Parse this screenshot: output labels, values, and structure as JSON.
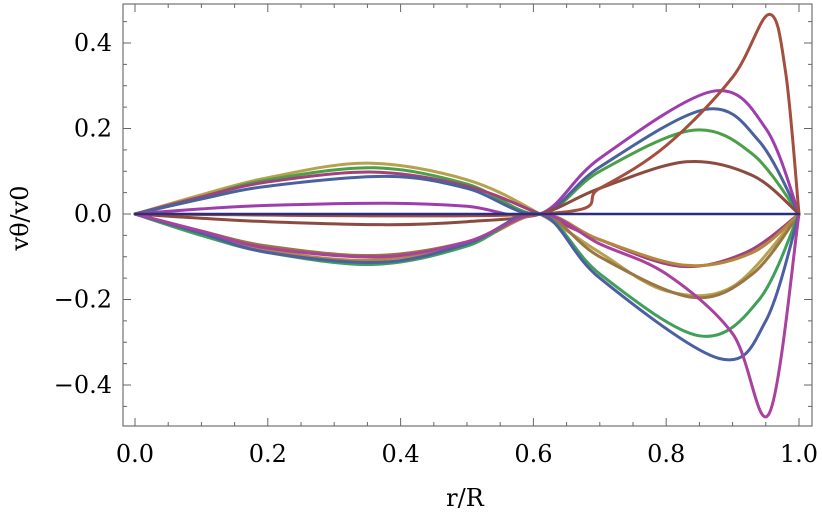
{
  "chart_data": {
    "type": "line",
    "title": "",
    "xlabel": "r/R",
    "ylabel": "vθ/v0",
    "xlim": [
      -0.02,
      1.02
    ],
    "ylim": [
      -0.5,
      0.5
    ],
    "x_ticks": [
      {
        "value": 0.0,
        "label": "0.0"
      },
      {
        "value": 0.2,
        "label": "0.2"
      },
      {
        "value": 0.4,
        "label": "0.4"
      },
      {
        "value": 0.6,
        "label": "0.6"
      },
      {
        "value": 0.8,
        "label": "0.8"
      },
      {
        "value": 1.0,
        "label": "1.0"
      }
    ],
    "y_ticks": [
      {
        "value": 0.4,
        "label": "0.4"
      },
      {
        "value": 0.2,
        "label": "0.2"
      },
      {
        "value": 0.0,
        "label": "0.0"
      },
      {
        "value": -0.2,
        "label": "−0.2"
      },
      {
        "value": -0.4,
        "label": "−0.4"
      }
    ],
    "grid": false,
    "legend": "none",
    "series": [
      {
        "color": "#B5A24E",
        "x": [
          0,
          0.1,
          0.2,
          0.35,
          0.5,
          0.61,
          0.7,
          0.8,
          0.9,
          1.0
        ],
        "y": [
          0,
          0.045,
          0.085,
          0.119,
          0.08,
          0,
          -0.09,
          -0.18,
          -0.17,
          0
        ]
      },
      {
        "color": "#4C9E47",
        "x": [
          0,
          0.1,
          0.2,
          0.36,
          0.5,
          0.61,
          0.7,
          0.84,
          0.93,
          1.0
        ],
        "y": [
          0,
          0.04,
          0.08,
          0.108,
          0.07,
          0,
          0.1,
          0.196,
          0.14,
          0
        ]
      },
      {
        "color": "#A3407E",
        "x": [
          0,
          0.1,
          0.2,
          0.36,
          0.5,
          0.61,
          0.7,
          0.82,
          0.92,
          1.0
        ],
        "y": [
          0,
          0.04,
          0.075,
          0.098,
          0.065,
          0,
          -0.06,
          -0.122,
          -0.09,
          0
        ]
      },
      {
        "color": "#4A629C",
        "x": [
          0,
          0.1,
          0.2,
          0.38,
          0.5,
          0.61,
          0.7,
          0.86,
          0.94,
          1.0
        ],
        "y": [
          0,
          0.035,
          0.065,
          0.088,
          0.06,
          0,
          0.11,
          0.245,
          0.17,
          0
        ]
      },
      {
        "color": "#9E3EAE",
        "x": [
          0,
          0.1,
          0.2,
          0.38,
          0.5,
          0.61,
          0.7,
          0.87,
          0.95,
          1.0
        ],
        "y": [
          0,
          0.012,
          0.02,
          0.025,
          0.018,
          0,
          0.13,
          0.287,
          0.2,
          0
        ]
      },
      {
        "color": "#8B4B3F",
        "x": [
          0,
          0.1,
          0.2,
          0.38,
          0.5,
          0.61,
          0.7,
          0.83,
          0.93,
          1.0
        ],
        "y": [
          0,
          -0.01,
          -0.018,
          -0.025,
          -0.018,
          0,
          0.06,
          0.122,
          0.09,
          0
        ]
      },
      {
        "color": "#9A7645",
        "x": [
          0,
          0.1,
          0.2,
          0.36,
          0.5,
          0.61,
          0.7,
          0.84,
          0.93,
          1.0
        ],
        "y": [
          0,
          -0.04,
          -0.075,
          -0.097,
          -0.065,
          0,
          -0.1,
          -0.195,
          -0.14,
          0
        ]
      },
      {
        "color": "#B3883D",
        "x": [
          0,
          0.1,
          0.2,
          0.35,
          0.5,
          0.61,
          0.7,
          0.83,
          0.93,
          1.0
        ],
        "y": [
          0,
          -0.045,
          -0.085,
          -0.108,
          -0.07,
          0,
          -0.06,
          -0.12,
          -0.09,
          0
        ]
      },
      {
        "color": "#3FA05A",
        "x": [
          0,
          0.1,
          0.2,
          0.36,
          0.5,
          0.61,
          0.7,
          0.85,
          0.94,
          1.0
        ],
        "y": [
          0,
          -0.05,
          -0.09,
          -0.118,
          -0.075,
          0,
          -0.14,
          -0.285,
          -0.2,
          0
        ]
      },
      {
        "color": "#4D5FA3",
        "x": [
          0,
          0.1,
          0.2,
          0.37,
          0.5,
          0.61,
          0.7,
          0.88,
          0.95,
          1.0
        ],
        "y": [
          0,
          -0.045,
          -0.09,
          -0.113,
          -0.07,
          0,
          -0.15,
          -0.338,
          -0.25,
          0
        ]
      },
      {
        "color": "#A9419E",
        "x": [
          0,
          0.1,
          0.2,
          0.37,
          0.5,
          0.61,
          0.7,
          0.8,
          0.9,
          0.955,
          1.0
        ],
        "y": [
          0,
          -0.04,
          -0.08,
          -0.1,
          -0.065,
          0,
          -0.07,
          -0.14,
          -0.28,
          -0.467,
          0
        ]
      },
      {
        "color": "#A34E3E",
        "x": [
          0,
          0.61,
          0.7,
          0.8,
          0.9,
          0.955,
          0.98,
          1.0
        ],
        "y": [
          0,
          0,
          0.06,
          0.16,
          0.32,
          0.467,
          0.33,
          0
        ]
      },
      {
        "color": "#2A2E80",
        "x": [
          0,
          1.0
        ],
        "y": [
          0,
          0
        ]
      }
    ]
  }
}
